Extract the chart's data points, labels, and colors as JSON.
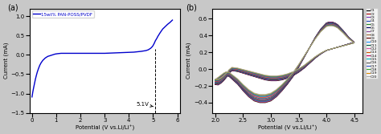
{
  "panel_a": {
    "label": "(a)",
    "legend": "15wt% PAN-POSS/PVDF",
    "line_color": "#0000cc",
    "xlabel": "Potential (V vs.Li/Li⁺)",
    "ylabel": "Current (mA)",
    "xlim": [
      -0.1,
      6.1
    ],
    "ylim": [
      -1.5,
      1.2
    ],
    "xticks": [
      0,
      1,
      2,
      3,
      4,
      5,
      6
    ],
    "yticks": [
      -1.5,
      -1.0,
      -0.5,
      0.0,
      0.5,
      1.0
    ],
    "annotation": "5.1V",
    "vline_x": 5.1,
    "lsv_x": [
      0.0,
      0.03,
      0.06,
      0.1,
      0.14,
      0.18,
      0.22,
      0.27,
      0.32,
      0.38,
      0.45,
      0.55,
      0.65,
      0.75,
      0.85,
      0.95,
      1.05,
      1.2,
      1.4,
      1.6,
      1.8,
      2.0,
      2.3,
      2.6,
      3.0,
      3.4,
      3.8,
      4.2,
      4.5,
      4.7,
      4.8,
      4.85,
      4.9,
      4.95,
      5.0,
      5.05,
      5.1,
      5.15,
      5.2,
      5.3,
      5.4,
      5.5,
      5.6,
      5.7,
      5.75,
      5.8
    ],
    "lsv_y": [
      -1.09,
      -0.97,
      -0.87,
      -0.75,
      -0.63,
      -0.53,
      -0.44,
      -0.35,
      -0.27,
      -0.2,
      -0.14,
      -0.08,
      -0.04,
      -0.02,
      0.0,
      0.02,
      0.03,
      0.04,
      0.04,
      0.04,
      0.04,
      0.04,
      0.04,
      0.04,
      0.04,
      0.05,
      0.06,
      0.07,
      0.09,
      0.11,
      0.13,
      0.15,
      0.17,
      0.2,
      0.24,
      0.3,
      0.37,
      0.42,
      0.48,
      0.58,
      0.67,
      0.73,
      0.79,
      0.84,
      0.87,
      0.9
    ]
  },
  "panel_b": {
    "label": "(b)",
    "xlabel": "Potential (V vs.Li/Li⁺)",
    "ylabel": "Current (mA)",
    "xlim": [
      1.95,
      4.65
    ],
    "ylim": [
      -0.52,
      0.72
    ],
    "xticks": [
      2.0,
      2.5,
      3.0,
      3.5,
      4.0,
      4.5
    ],
    "yticks": [
      -0.4,
      -0.2,
      0.0,
      0.2,
      0.4,
      0.6
    ],
    "cycles": 20,
    "legend_labels": [
      "C1",
      "C2",
      "C3",
      "C4",
      "C5",
      "C6",
      "C7",
      "C8",
      "C9",
      "C10",
      "C11",
      "C12",
      "C13",
      "C14",
      "C15",
      "C16",
      "C17",
      "C18",
      "C19",
      "C20"
    ],
    "legend_colors": [
      "#000000",
      "#aa0000",
      "#7733bb",
      "#2244bb",
      "#228B22",
      "#000066",
      "#884499",
      "#996633",
      "#660000",
      "#1e90ff",
      "#006644",
      "#dd55aa",
      "#cc5500",
      "#cc0066",
      "#00bbbb",
      "#555555",
      "#3355cc",
      "#33aa33",
      "#dd8800",
      "#aaaaaa"
    ]
  },
  "figure_bgcolor": "#c8c8c8"
}
